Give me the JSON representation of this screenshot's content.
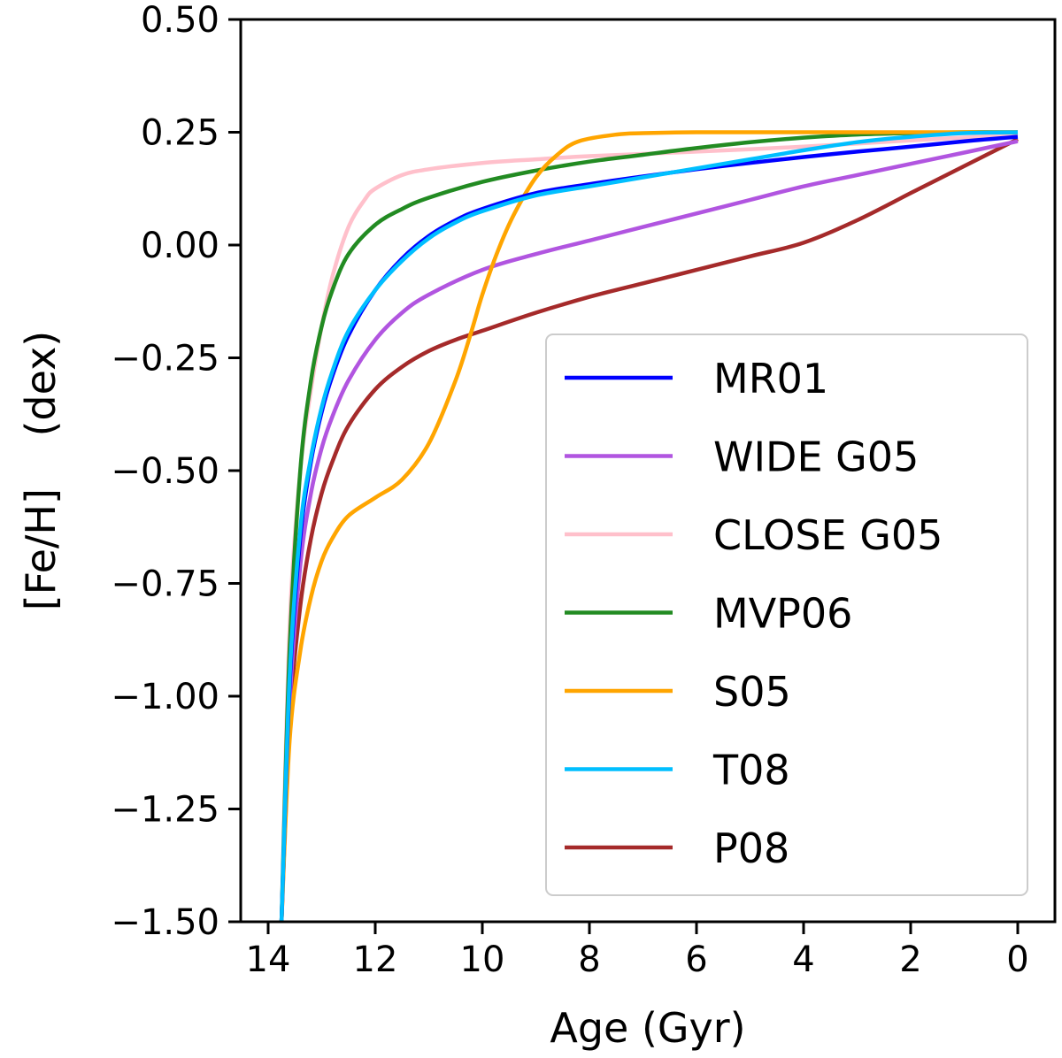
{
  "chart_data": {
    "type": "line",
    "xlabel": "Age (Gyr)",
    "ylabel": "[Fe/H]    (dex)",
    "xlim": [
      14.5,
      -0.8
    ],
    "ylim": [
      -1.5,
      0.5
    ],
    "xticks": [
      14,
      12,
      10,
      8,
      6,
      4,
      2,
      0
    ],
    "yticks": [
      0.5,
      0.25,
      0.0,
      -0.25,
      -0.5,
      -0.75,
      -1.0,
      -1.25,
      -1.5
    ],
    "ytick_labels": [
      "0.50",
      "0.25",
      "0.00",
      "−0.25",
      "−0.50",
      "−0.75",
      "−1.00",
      "−1.25",
      "−1.50"
    ],
    "xtick_labels": [
      "14",
      "12",
      "10",
      "8",
      "6",
      "4",
      "2",
      "0"
    ],
    "legend_position": "lower-right",
    "series": [
      {
        "name": "MR01",
        "color": "#0000ff",
        "x": [
          13.75,
          13.6,
          13.4,
          13.2,
          13.0,
          12.8,
          12.5,
          12.0,
          11.5,
          11.0,
          10.5,
          10.0,
          9.0,
          8.0,
          7.0,
          6.0,
          5.0,
          4.0,
          3.0,
          2.0,
          1.0,
          0.0
        ],
        "y": [
          -1.5,
          -0.98,
          -0.65,
          -0.48,
          -0.37,
          -0.29,
          -0.2,
          -0.1,
          -0.03,
          0.02,
          0.055,
          0.08,
          0.115,
          0.135,
          0.152,
          0.168,
          0.182,
          0.195,
          0.207,
          0.218,
          0.23,
          0.24
        ]
      },
      {
        "name": "WIDE G05",
        "color": "#b155e0",
        "x": [
          13.75,
          13.6,
          13.4,
          13.2,
          13.0,
          12.8,
          12.5,
          12.0,
          11.5,
          11.0,
          10.0,
          9.0,
          8.0,
          7.0,
          6.0,
          5.0,
          4.0,
          3.0,
          2.0,
          1.0,
          0.0
        ],
        "y": [
          -1.5,
          -1.02,
          -0.71,
          -0.55,
          -0.45,
          -0.38,
          -0.3,
          -0.21,
          -0.15,
          -0.11,
          -0.055,
          -0.02,
          0.01,
          0.04,
          0.07,
          0.1,
          0.13,
          0.155,
          0.18,
          0.205,
          0.23
        ]
      },
      {
        "name": "CLOSE G05",
        "color": "#ffc0cb",
        "x": [
          13.75,
          13.6,
          13.4,
          13.2,
          13.0,
          12.8,
          12.5,
          12.2,
          12.0,
          11.5,
          11.0,
          10.0,
          9.0,
          8.0,
          6.0,
          4.0,
          2.0,
          0.0
        ],
        "y": [
          -1.5,
          -0.85,
          -0.5,
          -0.32,
          -0.18,
          -0.07,
          0.04,
          0.1,
          0.125,
          0.155,
          0.168,
          0.182,
          0.19,
          0.197,
          0.207,
          0.218,
          0.232,
          0.245
        ]
      },
      {
        "name": "MVP06",
        "color": "#228b22",
        "x": [
          13.75,
          13.6,
          13.4,
          13.2,
          13.0,
          12.8,
          12.5,
          12.0,
          11.5,
          11.0,
          10.0,
          9.0,
          8.0,
          7.0,
          6.0,
          5.0,
          4.0,
          3.0,
          2.0,
          1.0,
          0.0
        ],
        "y": [
          -1.5,
          -0.9,
          -0.5,
          -0.3,
          -0.18,
          -0.1,
          -0.02,
          0.045,
          0.08,
          0.105,
          0.14,
          0.165,
          0.185,
          0.2,
          0.215,
          0.228,
          0.238,
          0.245,
          0.248,
          0.25,
          0.25
        ]
      },
      {
        "name": "S05",
        "color": "#ffa500",
        "x": [
          13.75,
          13.6,
          13.4,
          13.2,
          13.0,
          12.8,
          12.5,
          12.0,
          11.5,
          11.0,
          10.5,
          10.2,
          10.0,
          9.7,
          9.4,
          9.0,
          8.6,
          8.2,
          7.5,
          7.0,
          6.0,
          4.0,
          2.0,
          0.0
        ],
        "y": [
          -1.5,
          -1.1,
          -0.9,
          -0.78,
          -0.7,
          -0.65,
          -0.6,
          -0.56,
          -0.52,
          -0.44,
          -0.3,
          -0.19,
          -0.11,
          -0.01,
          0.07,
          0.15,
          0.2,
          0.23,
          0.245,
          0.248,
          0.25,
          0.25,
          0.25,
          0.25
        ]
      },
      {
        "name": "T08",
        "color": "#00bfff",
        "x": [
          13.75,
          13.6,
          13.4,
          13.2,
          13.0,
          12.8,
          12.5,
          12.0,
          11.5,
          11.0,
          10.5,
          10.0,
          9.0,
          8.0,
          7.0,
          6.0,
          5.0,
          4.0,
          3.0,
          2.0,
          1.0,
          0.0
        ],
        "y": [
          -1.5,
          -0.96,
          -0.63,
          -0.47,
          -0.36,
          -0.28,
          -0.19,
          -0.1,
          -0.035,
          0.015,
          0.05,
          0.075,
          0.11,
          0.13,
          0.15,
          0.17,
          0.19,
          0.21,
          0.228,
          0.24,
          0.248,
          0.25
        ]
      },
      {
        "name": "P08",
        "color": "#a52a2a",
        "x": [
          13.75,
          13.6,
          13.4,
          13.2,
          13.0,
          12.8,
          12.5,
          12.0,
          11.5,
          11.0,
          10.5,
          10.0,
          9.0,
          8.0,
          7.0,
          6.0,
          5.0,
          4.0,
          3.0,
          2.0,
          1.0,
          0.0
        ],
        "y": [
          -1.5,
          -1.06,
          -0.8,
          -0.65,
          -0.55,
          -0.48,
          -0.4,
          -0.32,
          -0.27,
          -0.235,
          -0.21,
          -0.19,
          -0.15,
          -0.115,
          -0.085,
          -0.055,
          -0.025,
          0.005,
          0.055,
          0.115,
          0.175,
          0.235
        ]
      }
    ]
  }
}
